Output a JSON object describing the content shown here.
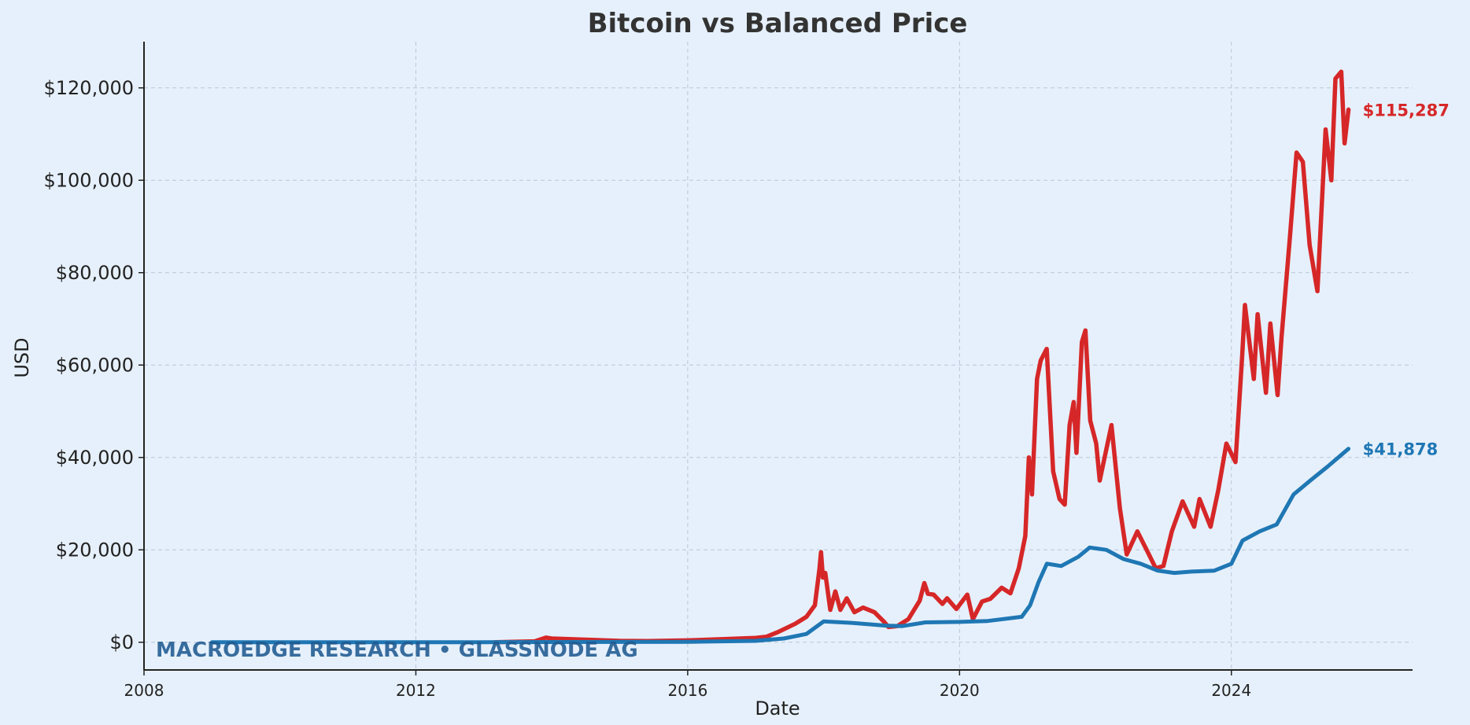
{
  "chart_data": {
    "type": "line",
    "title": "Bitcoin vs Balanced Price",
    "xlabel": "Date",
    "ylabel": "USD",
    "xlim": [
      "2008-01-01",
      "2026-09-01"
    ],
    "ylim": [
      -6000,
      130000
    ],
    "x_ticks": [
      "2008",
      "2012",
      "2016",
      "2020",
      "2024"
    ],
    "y_ticks": [
      {
        "value": 0,
        "label": "$0"
      },
      {
        "value": 20000,
        "label": "$20,000"
      },
      {
        "value": 40000,
        "label": "$40,000"
      },
      {
        "value": 60000,
        "label": "$60,000"
      },
      {
        "value": 80000,
        "label": "$80,000"
      },
      {
        "value": 100000,
        "label": "$100,000"
      },
      {
        "value": 120000,
        "label": "$120,000"
      }
    ],
    "grid": true,
    "legend": "none",
    "watermark": "MACROEDGE RESEARCH • GLASSNODE AG",
    "series": [
      {
        "color": "#d62728",
        "end_label": "$115,287",
        "points": [
          [
            "2013-03-01",
            0
          ],
          [
            "2013-06-01",
            100
          ],
          [
            "2013-10-01",
            200
          ],
          [
            "2013-12-01",
            1000
          ],
          [
            "2014-01-01",
            800
          ],
          [
            "2014-06-01",
            600
          ],
          [
            "2015-01-01",
            300
          ],
          [
            "2015-06-01",
            250
          ],
          [
            "2016-01-01",
            400
          ],
          [
            "2016-07-01",
            650
          ],
          [
            "2017-01-01",
            950
          ],
          [
            "2017-03-01",
            1200
          ],
          [
            "2017-05-01",
            2200
          ],
          [
            "2017-08-01",
            4000
          ],
          [
            "2017-10-01",
            5500
          ],
          [
            "2017-11-15",
            8000
          ],
          [
            "2017-12-10",
            16000
          ],
          [
            "2017-12-18",
            19500
          ],
          [
            "2017-12-28",
            14000
          ],
          [
            "2018-01-10",
            15000
          ],
          [
            "2018-02-06",
            7000
          ],
          [
            "2018-03-05",
            11000
          ],
          [
            "2018-04-01",
            7000
          ],
          [
            "2018-05-05",
            9500
          ],
          [
            "2018-06-15",
            6500
          ],
          [
            "2018-08-01",
            7500
          ],
          [
            "2018-10-01",
            6500
          ],
          [
            "2018-11-20",
            4500
          ],
          [
            "2018-12-15",
            3300
          ],
          [
            "2019-02-01",
            3500
          ],
          [
            "2019-04-01",
            5000
          ],
          [
            "2019-06-01",
            9000
          ],
          [
            "2019-06-26",
            12800
          ],
          [
            "2019-07-15",
            10500
          ],
          [
            "2019-08-15",
            10300
          ],
          [
            "2019-10-01",
            8300
          ],
          [
            "2019-10-26",
            9500
          ],
          [
            "2019-12-15",
            7200
          ],
          [
            "2020-02-12",
            10300
          ],
          [
            "2020-03-13",
            5000
          ],
          [
            "2020-05-01",
            8800
          ],
          [
            "2020-06-15",
            9400
          ],
          [
            "2020-08-15",
            11800
          ],
          [
            "2020-10-01",
            10600
          ],
          [
            "2020-11-15",
            16000
          ],
          [
            "2020-12-20",
            23000
          ],
          [
            "2021-01-08",
            40000
          ],
          [
            "2021-01-25",
            32000
          ],
          [
            "2021-02-21",
            57000
          ],
          [
            "2021-03-13",
            61000
          ],
          [
            "2021-04-14",
            63500
          ],
          [
            "2021-05-19",
            37000
          ],
          [
            "2021-06-22",
            31000
          ],
          [
            "2021-07-20",
            29800
          ],
          [
            "2021-08-15",
            47000
          ],
          [
            "2021-09-06",
            52000
          ],
          [
            "2021-09-21",
            41000
          ],
          [
            "2021-10-20",
            65000
          ],
          [
            "2021-11-08",
            67500
          ],
          [
            "2021-12-04",
            48000
          ],
          [
            "2022-01-05",
            43000
          ],
          [
            "2022-01-24",
            35000
          ],
          [
            "2022-03-28",
            47000
          ],
          [
            "2022-05-12",
            29000
          ],
          [
            "2022-06-18",
            19000
          ],
          [
            "2022-08-14",
            24000
          ],
          [
            "2022-10-15",
            19000
          ],
          [
            "2022-11-21",
            16000
          ],
          [
            "2023-01-01",
            16500
          ],
          [
            "2023-02-15",
            24000
          ],
          [
            "2023-04-14",
            30500
          ],
          [
            "2023-06-15",
            25000
          ],
          [
            "2023-07-14",
            31000
          ],
          [
            "2023-09-11",
            25000
          ],
          [
            "2023-10-23",
            33000
          ],
          [
            "2023-12-05",
            43000
          ],
          [
            "2024-01-23",
            39000
          ],
          [
            "2024-02-28",
            62000
          ],
          [
            "2024-03-14",
            73000
          ],
          [
            "2024-05-01",
            57000
          ],
          [
            "2024-05-21",
            71000
          ],
          [
            "2024-07-05",
            54000
          ],
          [
            "2024-07-29",
            69000
          ],
          [
            "2024-09-06",
            53500
          ],
          [
            "2024-09-27",
            66000
          ],
          [
            "2024-11-12",
            88000
          ],
          [
            "2024-12-17",
            106000
          ],
          [
            "2025-01-20",
            104000
          ],
          [
            "2025-02-25",
            86000
          ],
          [
            "2025-04-08",
            76000
          ],
          [
            "2025-05-22",
            111000
          ],
          [
            "2025-06-22",
            100000
          ],
          [
            "2025-07-14",
            122000
          ],
          [
            "2025-08-14",
            123500
          ],
          [
            "2025-09-01",
            108000
          ],
          [
            "2025-09-22",
            115287
          ]
        ]
      },
      {
        "color": "#1f77b4",
        "end_label": "$41,878",
        "points": [
          [
            "2009-01-01",
            0
          ],
          [
            "2013-01-01",
            10
          ],
          [
            "2016-01-01",
            100
          ],
          [
            "2017-01-01",
            300
          ],
          [
            "2017-06-01",
            800
          ],
          [
            "2017-10-01",
            1800
          ],
          [
            "2018-01-01",
            4500
          ],
          [
            "2018-06-01",
            4200
          ],
          [
            "2018-12-01",
            3600
          ],
          [
            "2019-03-01",
            3500
          ],
          [
            "2019-07-01",
            4300
          ],
          [
            "2020-01-01",
            4400
          ],
          [
            "2020-06-01",
            4600
          ],
          [
            "2020-12-01",
            5500
          ],
          [
            "2021-01-15",
            8000
          ],
          [
            "2021-03-01",
            13000
          ],
          [
            "2021-04-15",
            17000
          ],
          [
            "2021-07-01",
            16500
          ],
          [
            "2021-10-01",
            18500
          ],
          [
            "2021-12-01",
            20500
          ],
          [
            "2022-03-01",
            20000
          ],
          [
            "2022-06-01",
            18000
          ],
          [
            "2022-09-01",
            17000
          ],
          [
            "2022-12-01",
            15500
          ],
          [
            "2023-03-01",
            15000
          ],
          [
            "2023-06-01",
            15300
          ],
          [
            "2023-10-01",
            15500
          ],
          [
            "2024-01-01",
            17000
          ],
          [
            "2024-03-01",
            22000
          ],
          [
            "2024-06-01",
            24000
          ],
          [
            "2024-09-01",
            25500
          ],
          [
            "2024-12-01",
            32000
          ],
          [
            "2025-03-01",
            35000
          ],
          [
            "2025-06-01",
            38000
          ],
          [
            "2025-09-22",
            41878
          ]
        ]
      }
    ]
  }
}
